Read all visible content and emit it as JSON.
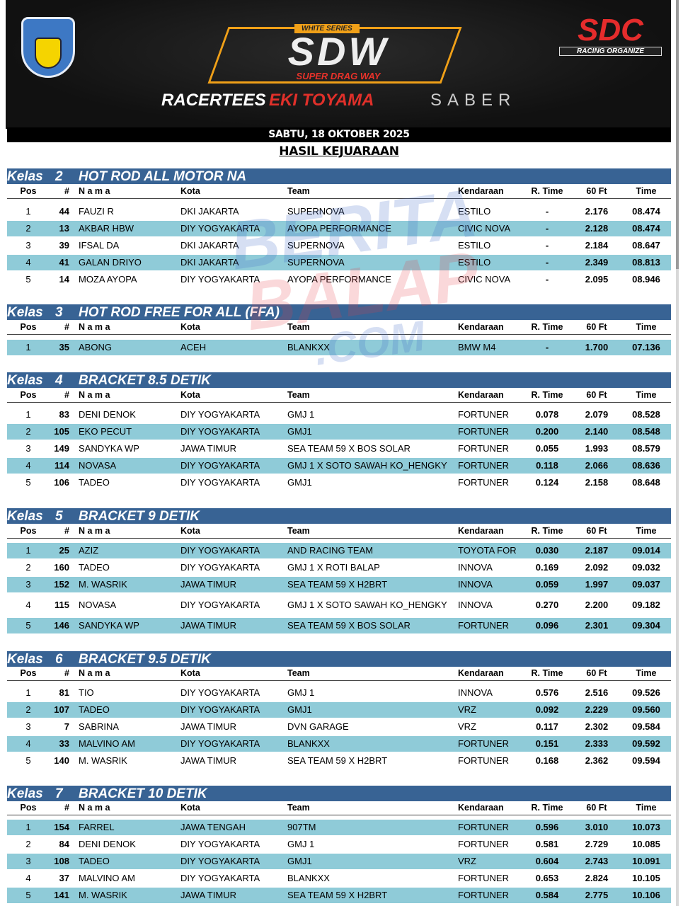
{
  "banner": {
    "left_logo": "IKATAN MOTOR INDONESIA",
    "series_label": "WHITE SERIES",
    "event_logo": "SDW",
    "event_subtitle": "SUPER DRAG WAY",
    "organizer_logo": "SDC",
    "organizer_tagline": "RACING ORGANIZE",
    "sponsors": [
      "RACERTEES",
      "EKI TOYAMA",
      "SABER"
    ]
  },
  "date": "SABTU, 18 OKTOBER 2025",
  "title": "HASIL KEJUARAAN",
  "watermark": [
    "BERITA",
    "BALAP",
    ".COM"
  ],
  "headers": {
    "pos": "Pos",
    "num": "#",
    "nama": "N a m a",
    "kota": "Kota",
    "team": "Team",
    "kend": "Kendaraan",
    "rt": "R. Time",
    "ft": "60 Ft",
    "tm": "Time"
  },
  "sections": [
    {
      "kelas": "Kelas",
      "no": "2",
      "name": "HOT ROD ALL MOTOR NA",
      "rows": [
        [
          "1",
          "44",
          "FAUZI R",
          "DKI JAKARTA",
          "SUPERNOVA",
          "ESTILO",
          "-",
          "2.176",
          "08.474"
        ],
        [
          "2",
          "13",
          "AKBAR HBW",
          "DIY YOGYAKARTA",
          "AYOPA PERFORMANCE",
          "CIVIC NOVA",
          "-",
          "2.128",
          "08.474"
        ],
        [
          "3",
          "39",
          "IFSAL DA",
          "DKI JAKARTA",
          "SUPERNOVA",
          "ESTILO",
          "-",
          "2.184",
          "08.647"
        ],
        [
          "4",
          "41",
          "GALAN DRIYO",
          "DKI JAKARTA",
          "SUPERNOVA",
          "ESTILO",
          "-",
          "2.349",
          "08.813"
        ],
        [
          "5",
          "14",
          "MOZA AYOPA",
          "DIY YOGYAKARTA",
          "AYOPA PERFORMANCE",
          "CIVIC NOVA",
          "-",
          "2.095",
          "08.946"
        ]
      ]
    },
    {
      "kelas": "Kelas",
      "no": "3",
      "name": "HOT ROD FREE FOR ALL (FFA)",
      "rows": [
        [
          "1",
          "35",
          "ABONG",
          "ACEH",
          "BLANKXX",
          "BMW M4",
          "-",
          "1.700",
          "07.136"
        ]
      ]
    },
    {
      "kelas": "Kelas",
      "no": "4",
      "name": "BRACKET 8.5 DETIK",
      "rows": [
        [
          "1",
          "83",
          "DENI DENOK",
          "DIY YOGYAKARTA",
          "GMJ 1",
          "FORTUNER",
          "0.078",
          "2.079",
          "08.528"
        ],
        [
          "2",
          "105",
          "EKO PECUT",
          "DIY YOGYAKARTA",
          "GMJ1",
          "FORTUNER",
          "0.200",
          "2.140",
          "08.548"
        ],
        [
          "3",
          "149",
          "SANDYKA WP",
          "JAWA TIMUR",
          "SEA TEAM 59 X BOS SOLAR",
          "FORTUNER",
          "0.055",
          "1.993",
          "08.579"
        ],
        [
          "4",
          "114",
          "NOVASA",
          "DIY YOGYAKARTA",
          "GMJ 1 X SOTO SAWAH KO_HENGKY",
          "FORTUNER",
          "0.118",
          "2.066",
          "08.636"
        ],
        [
          "5",
          "106",
          "TADEO",
          "DIY YOGYAKARTA",
          "GMJ1",
          "FORTUNER",
          "0.124",
          "2.158",
          "08.648"
        ]
      ]
    },
    {
      "kelas": "Kelas",
      "no": "5",
      "name": "BRACKET 9 DETIK",
      "rows": [
        [
          "1",
          "25",
          "AZIZ",
          "DIY YOGYAKARTA",
          "AND RACING TEAM",
          "TOYOTA FOR",
          "0.030",
          "2.187",
          "09.014"
        ],
        [
          "2",
          "160",
          "TADEO",
          "DIY YOGYAKARTA",
          "GMJ 1 X ROTI BALAP",
          "INNOVA",
          "0.169",
          "2.092",
          "09.032"
        ],
        [
          "3",
          "152",
          "M. WASRIK",
          "JAWA TIMUR",
          "SEA TEAM 59 X H2BRT",
          "INNOVA",
          "0.059",
          "1.997",
          "09.037"
        ],
        [
          "4",
          "115",
          "NOVASA",
          "DIY YOGYAKARTA",
          "GMJ 1 X SOTO SAWAH KO_HENGKY",
          "INNOVA",
          "0.270",
          "2.200",
          "09.182"
        ],
        [
          "5",
          "146",
          "SANDYKA WP",
          "JAWA TIMUR",
          "SEA TEAM 59 X BOS SOLAR",
          "FORTUNER",
          "0.096",
          "2.301",
          "09.304"
        ]
      ]
    },
    {
      "kelas": "Kelas",
      "no": "6",
      "name": "BRACKET 9.5 DETIK",
      "rows": [
        [
          "1",
          "81",
          "TIO",
          "DIY YOGYAKARTA",
          "GMJ 1",
          "INNOVA",
          "0.576",
          "2.516",
          "09.526"
        ],
        [
          "2",
          "107",
          "TADEO",
          "DIY YOGYAKARTA",
          "GMJ1",
          "VRZ",
          "0.092",
          "2.229",
          "09.560"
        ],
        [
          "3",
          "7",
          "SABRINA",
          "JAWA TIMUR",
          "DVN GARAGE",
          "VRZ",
          "0.117",
          "2.302",
          "09.584"
        ],
        [
          "4",
          "33",
          "MALVINO AM",
          "DIY YOGYAKARTA",
          "BLANKXX",
          "FORTUNER",
          "0.151",
          "2.333",
          "09.592"
        ],
        [
          "5",
          "140",
          "M. WASRIK",
          "JAWA TIMUR",
          "SEA TEAM 59 X H2BRT",
          "FORTUNER",
          "0.168",
          "2.362",
          "09.594"
        ]
      ]
    },
    {
      "kelas": "Kelas",
      "no": "7",
      "name": "BRACKET 10 DETIK",
      "rows": [
        [
          "1",
          "154",
          "FARREL",
          "JAWA TENGAH",
          "907TM",
          "FORTUNER",
          "0.596",
          "3.010",
          "10.073"
        ],
        [
          "2",
          "84",
          "DENI DENOK",
          "DIY YOGYAKARTA",
          "GMJ 1",
          "FORTUNER",
          "0.581",
          "2.729",
          "10.085"
        ],
        [
          "3",
          "108",
          "TADEO",
          "DIY YOGYAKARTA",
          "GMJ1",
          "VRZ",
          "0.604",
          "2.743",
          "10.091"
        ],
        [
          "4",
          "37",
          "MALVINO AM",
          "DIY YOGYAKARTA",
          "BLANKXX",
          "FORTUNER",
          "0.653",
          "2.824",
          "10.105"
        ],
        [
          "5",
          "141",
          "M. WASRIK",
          "JAWA TIMUR",
          "SEA TEAM 59 X H2BRT",
          "FORTUNER",
          "0.584",
          "2.775",
          "10.106"
        ]
      ]
    }
  ]
}
